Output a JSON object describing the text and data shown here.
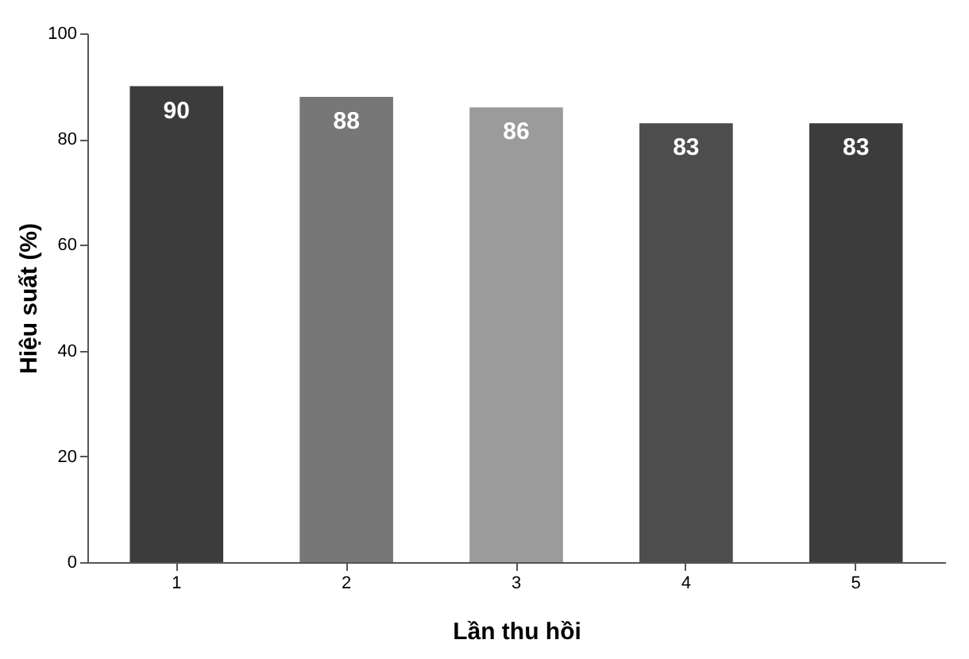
{
  "chart_data": {
    "type": "bar",
    "xlabel": "Lần thu hồi",
    "ylabel": "Hiệu suất (%)",
    "categories": [
      "1",
      "2",
      "3",
      "4",
      "5"
    ],
    "values": [
      90,
      88,
      86,
      83,
      83
    ],
    "colors": [
      "#3c3c3c",
      "#777777",
      "#9b9b9b",
      "#4d4d4d",
      "#3c3c3c"
    ],
    "ylim": [
      0,
      100
    ],
    "yticks": [
      0,
      20,
      40,
      60,
      80,
      100
    ],
    "grid": false,
    "data_labels": true
  }
}
